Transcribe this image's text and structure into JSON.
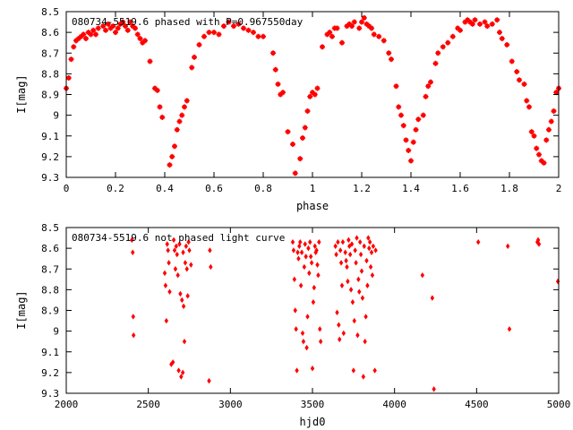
{
  "chart_data": [
    {
      "type": "scatter",
      "title": "080734-5519.6 phased with P=0.967550day",
      "xlabel": "phase",
      "ylabel": "I[mag]",
      "xlim": [
        0,
        2
      ],
      "ylim": [
        8.5,
        9.3
      ],
      "y_inverted": true,
      "marker": "cross",
      "color": "#ff0000",
      "x_ticks": [
        "0",
        "0.2",
        "0.4",
        "0.6",
        "0.8",
        "1",
        "1.2",
        "1.4",
        "1.6",
        "1.8",
        "2"
      ],
      "x_tick_values": [
        0,
        0.2,
        0.4,
        0.6,
        0.8,
        1,
        1.2,
        1.4,
        1.6,
        1.8,
        2
      ],
      "y_ticks": [
        "8.5",
        "8.6",
        "8.7",
        "8.8",
        "8.9",
        "9",
        "9.1",
        "9.2",
        "9.3"
      ],
      "y_tick_values": [
        8.5,
        8.6,
        8.7,
        8.8,
        8.9,
        9.0,
        9.1,
        9.2,
        9.3
      ],
      "points": [
        [
          0.0,
          8.87
        ],
        [
          0.01,
          8.82
        ],
        [
          0.02,
          8.73
        ],
        [
          0.03,
          8.67
        ],
        [
          0.04,
          8.64
        ],
        [
          0.05,
          8.63
        ],
        [
          0.06,
          8.62
        ],
        [
          0.07,
          8.61
        ],
        [
          0.08,
          8.63
        ],
        [
          0.09,
          8.6
        ],
        [
          0.1,
          8.61
        ],
        [
          0.11,
          8.59
        ],
        [
          0.12,
          8.61
        ],
        [
          0.13,
          8.58
        ],
        [
          0.15,
          8.57
        ],
        [
          0.16,
          8.59
        ],
        [
          0.17,
          8.56
        ],
        [
          0.18,
          8.58
        ],
        [
          0.19,
          8.57
        ],
        [
          0.2,
          8.6
        ],
        [
          0.21,
          8.58
        ],
        [
          0.22,
          8.56
        ],
        [
          0.23,
          8.55
        ],
        [
          0.24,
          8.57
        ],
        [
          0.25,
          8.59
        ],
        [
          0.26,
          8.55
        ],
        [
          0.27,
          8.57
        ],
        [
          0.28,
          8.58
        ],
        [
          0.29,
          8.61
        ],
        [
          0.3,
          8.63
        ],
        [
          0.31,
          8.65
        ],
        [
          0.32,
          8.64
        ],
        [
          0.34,
          8.74
        ],
        [
          0.36,
          8.87
        ],
        [
          0.37,
          8.88
        ],
        [
          0.38,
          8.96
        ],
        [
          0.39,
          9.01
        ],
        [
          0.42,
          9.24
        ],
        [
          0.43,
          9.2
        ],
        [
          0.44,
          9.15
        ],
        [
          0.45,
          9.07
        ],
        [
          0.46,
          9.03
        ],
        [
          0.47,
          9.0
        ],
        [
          0.48,
          8.96
        ],
        [
          0.49,
          8.93
        ],
        [
          0.51,
          8.77
        ],
        [
          0.52,
          8.72
        ],
        [
          0.54,
          8.66
        ],
        [
          0.56,
          8.62
        ],
        [
          0.58,
          8.6
        ],
        [
          0.6,
          8.6
        ],
        [
          0.62,
          8.61
        ],
        [
          0.64,
          8.57
        ],
        [
          0.66,
          8.55
        ],
        [
          0.68,
          8.57
        ],
        [
          0.7,
          8.56
        ],
        [
          0.72,
          8.58
        ],
        [
          0.74,
          8.59
        ],
        [
          0.76,
          8.6
        ],
        [
          0.78,
          8.62
        ],
        [
          0.8,
          8.62
        ],
        [
          0.84,
          8.7
        ],
        [
          0.85,
          8.78
        ],
        [
          0.86,
          8.85
        ],
        [
          0.87,
          8.9
        ],
        [
          0.88,
          8.89
        ],
        [
          0.9,
          9.08
        ],
        [
          0.92,
          9.14
        ],
        [
          0.93,
          9.28
        ],
        [
          0.95,
          9.21
        ],
        [
          0.96,
          9.11
        ],
        [
          0.97,
          9.06
        ],
        [
          0.98,
          8.98
        ],
        [
          0.99,
          8.91
        ],
        [
          1.0,
          8.89
        ],
        [
          1.01,
          8.9
        ],
        [
          1.02,
          8.87
        ],
        [
          1.04,
          8.67
        ],
        [
          1.06,
          8.61
        ],
        [
          1.07,
          8.6
        ],
        [
          1.08,
          8.62
        ],
        [
          1.09,
          8.58
        ],
        [
          1.1,
          8.58
        ],
        [
          1.12,
          8.65
        ],
        [
          1.14,
          8.57
        ],
        [
          1.15,
          8.56
        ],
        [
          1.16,
          8.57
        ],
        [
          1.17,
          8.55
        ],
        [
          1.19,
          8.58
        ],
        [
          1.2,
          8.55
        ],
        [
          1.21,
          8.53
        ],
        [
          1.22,
          8.56
        ],
        [
          1.23,
          8.57
        ],
        [
          1.24,
          8.58
        ],
        [
          1.25,
          8.61
        ],
        [
          1.27,
          8.62
        ],
        [
          1.29,
          8.64
        ],
        [
          1.31,
          8.7
        ],
        [
          1.32,
          8.73
        ],
        [
          1.34,
          8.86
        ],
        [
          1.35,
          8.96
        ],
        [
          1.36,
          9.0
        ],
        [
          1.37,
          9.05
        ],
        [
          1.38,
          9.12
        ],
        [
          1.39,
          9.17
        ],
        [
          1.4,
          9.22
        ],
        [
          1.41,
          9.13
        ],
        [
          1.42,
          9.07
        ],
        [
          1.43,
          9.02
        ],
        [
          1.45,
          9.0
        ],
        [
          1.46,
          8.91
        ],
        [
          1.47,
          8.86
        ],
        [
          1.48,
          8.84
        ],
        [
          1.5,
          8.75
        ],
        [
          1.51,
          8.7
        ],
        [
          1.53,
          8.67
        ],
        [
          1.55,
          8.65
        ],
        [
          1.57,
          8.62
        ],
        [
          1.59,
          8.58
        ],
        [
          1.6,
          8.59
        ],
        [
          1.62,
          8.55
        ],
        [
          1.63,
          8.54
        ],
        [
          1.64,
          8.55
        ],
        [
          1.65,
          8.56
        ],
        [
          1.66,
          8.54
        ],
        [
          1.68,
          8.56
        ],
        [
          1.7,
          8.55
        ],
        [
          1.71,
          8.57
        ],
        [
          1.73,
          8.56
        ],
        [
          1.75,
          8.54
        ],
        [
          1.76,
          8.6
        ],
        [
          1.77,
          8.63
        ],
        [
          1.79,
          8.66
        ],
        [
          1.81,
          8.74
        ],
        [
          1.83,
          8.79
        ],
        [
          1.84,
          8.83
        ],
        [
          1.86,
          8.85
        ],
        [
          1.87,
          8.93
        ],
        [
          1.88,
          8.96
        ],
        [
          1.89,
          9.08
        ],
        [
          1.9,
          9.1
        ],
        [
          1.91,
          9.16
        ],
        [
          1.92,
          9.19
        ],
        [
          1.93,
          9.22
        ],
        [
          1.94,
          9.23
        ],
        [
          1.95,
          9.12
        ],
        [
          1.96,
          9.07
        ],
        [
          1.97,
          9.03
        ],
        [
          1.98,
          8.98
        ],
        [
          1.99,
          8.89
        ],
        [
          2.0,
          8.87
        ]
      ]
    },
    {
      "type": "scatter",
      "title": "080734-5519.6 not phased light curve",
      "xlabel": "hjd0",
      "ylabel": "I[mag]",
      "xlim": [
        2000,
        5000
      ],
      "ylim": [
        8.5,
        9.3
      ],
      "y_inverted": true,
      "marker": "diamond",
      "color": "#ff0000",
      "x_ticks": [
        "2000",
        "2500",
        "3000",
        "3500",
        "4000",
        "4500",
        "5000"
      ],
      "x_tick_values": [
        2000,
        2500,
        3000,
        3500,
        4000,
        4500,
        5000
      ],
      "y_ticks": [
        "8.5",
        "8.6",
        "8.7",
        "8.8",
        "8.9",
        "9",
        "9.1",
        "9.2",
        "9.3"
      ],
      "y_tick_values": [
        8.5,
        8.6,
        8.7,
        8.8,
        8.9,
        9.0,
        9.1,
        9.2,
        9.3
      ],
      "points": [
        [
          2400,
          8.56
        ],
        [
          2405,
          8.62
        ],
        [
          2408,
          8.93
        ],
        [
          2410,
          9.02
        ],
        [
          2600,
          8.72
        ],
        [
          2605,
          8.78
        ],
        [
          2610,
          8.95
        ],
        [
          2615,
          8.58
        ],
        [
          2620,
          8.61
        ],
        [
          2625,
          8.67
        ],
        [
          2630,
          8.81
        ],
        [
          2640,
          9.16
        ],
        [
          2650,
          9.15
        ],
        [
          2655,
          8.56
        ],
        [
          2660,
          8.61
        ],
        [
          2665,
          8.7
        ],
        [
          2670,
          8.59
        ],
        [
          2675,
          8.63
        ],
        [
          2680,
          8.73
        ],
        [
          2685,
          9.19
        ],
        [
          2690,
          8.58
        ],
        [
          2695,
          8.82
        ],
        [
          2700,
          9.22
        ],
        [
          2705,
          8.85
        ],
        [
          2710,
          9.2
        ],
        [
          2712,
          8.62
        ],
        [
          2715,
          8.88
        ],
        [
          2720,
          9.05
        ],
        [
          2725,
          8.67
        ],
        [
          2730,
          8.59
        ],
        [
          2735,
          8.7
        ],
        [
          2740,
          8.83
        ],
        [
          2745,
          8.57
        ],
        [
          2750,
          8.61
        ],
        [
          2760,
          8.68
        ],
        [
          2870,
          9.24
        ],
        [
          2875,
          8.61
        ],
        [
          2880,
          8.69
        ],
        [
          3380,
          8.57
        ],
        [
          3385,
          8.61
        ],
        [
          3390,
          8.75
        ],
        [
          3395,
          8.9
        ],
        [
          3400,
          8.99
        ],
        [
          3405,
          9.19
        ],
        [
          3410,
          8.62
        ],
        [
          3415,
          8.65
        ],
        [
          3420,
          8.59
        ],
        [
          3425,
          8.57
        ],
        [
          3430,
          8.78
        ],
        [
          3435,
          8.62
        ],
        [
          3440,
          9.01
        ],
        [
          3445,
          9.05
        ],
        [
          3450,
          8.69
        ],
        [
          3455,
          8.58
        ],
        [
          3460,
          8.64
        ],
        [
          3465,
          9.08
        ],
        [
          3470,
          8.93
        ],
        [
          3475,
          8.6
        ],
        [
          3480,
          8.72
        ],
        [
          3485,
          8.57
        ],
        [
          3490,
          8.64
        ],
        [
          3495,
          8.67
        ],
        [
          3500,
          9.18
        ],
        [
          3505,
          8.86
        ],
        [
          3510,
          8.79
        ],
        [
          3515,
          8.59
        ],
        [
          3520,
          8.62
        ],
        [
          3525,
          8.61
        ],
        [
          3530,
          8.68
        ],
        [
          3535,
          8.73
        ],
        [
          3540,
          8.57
        ],
        [
          3545,
          8.99
        ],
        [
          3550,
          9.05
        ],
        [
          3640,
          8.59
        ],
        [
          3645,
          8.63
        ],
        [
          3650,
          8.91
        ],
        [
          3655,
          8.57
        ],
        [
          3660,
          8.97
        ],
        [
          3665,
          9.04
        ],
        [
          3670,
          8.61
        ],
        [
          3675,
          8.67
        ],
        [
          3680,
          8.78
        ],
        [
          3685,
          8.57
        ],
        [
          3690,
          9.01
        ],
        [
          3700,
          8.62
        ],
        [
          3705,
          8.66
        ],
        [
          3710,
          8.69
        ],
        [
          3715,
          8.76
        ],
        [
          3720,
          8.56
        ],
        [
          3725,
          8.59
        ],
        [
          3730,
          8.63
        ],
        [
          3735,
          8.8
        ],
        [
          3740,
          8.58
        ],
        [
          3745,
          8.86
        ],
        [
          3750,
          9.19
        ],
        [
          3755,
          8.95
        ],
        [
          3760,
          8.61
        ],
        [
          3765,
          8.67
        ],
        [
          3770,
          8.55
        ],
        [
          3775,
          9.02
        ],
        [
          3780,
          8.75
        ],
        [
          3785,
          8.81
        ],
        [
          3790,
          8.57
        ],
        [
          3795,
          8.63
        ],
        [
          3800,
          8.71
        ],
        [
          3805,
          8.84
        ],
        [
          3810,
          9.22
        ],
        [
          3815,
          8.59
        ],
        [
          3820,
          9.05
        ],
        [
          3825,
          8.93
        ],
        [
          3830,
          8.66
        ],
        [
          3835,
          8.78
        ],
        [
          3840,
          8.55
        ],
        [
          3845,
          8.6
        ],
        [
          3850,
          8.57
        ],
        [
          3855,
          8.69
        ],
        [
          3860,
          8.62
        ],
        [
          3865,
          8.73
        ],
        [
          3870,
          8.59
        ],
        [
          3880,
          9.19
        ],
        [
          3885,
          8.61
        ],
        [
          4170,
          8.73
        ],
        [
          4230,
          8.84
        ],
        [
          4240,
          9.28
        ],
        [
          4510,
          8.57
        ],
        [
          4690,
          8.59
        ],
        [
          4700,
          8.99
        ],
        [
          4870,
          8.57
        ],
        [
          4875,
          8.56
        ],
        [
          4880,
          8.58
        ],
        [
          4995,
          8.76
        ]
      ]
    }
  ]
}
